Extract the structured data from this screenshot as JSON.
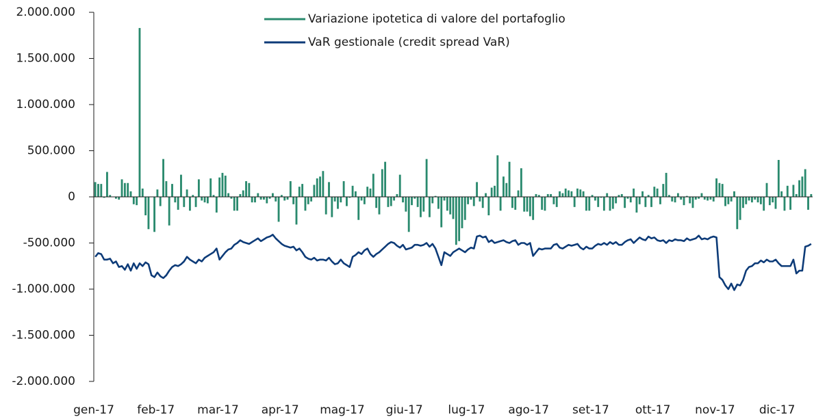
{
  "chart_data": {
    "type": "bar+line",
    "categories": [
      "gen-17",
      null,
      null,
      null,
      null,
      null,
      null,
      null,
      null,
      null,
      null,
      null,
      null,
      null,
      null,
      null,
      null,
      null,
      null,
      null,
      null,
      "feb-17",
      null,
      null,
      null,
      null,
      null,
      null,
      null,
      null,
      null,
      null,
      null,
      null,
      null,
      null,
      null,
      null,
      null,
      null,
      null,
      null,
      "mar-17",
      null,
      null,
      null,
      null,
      null,
      null,
      null,
      null,
      null,
      null,
      null,
      null,
      null,
      null,
      null,
      null,
      null,
      null,
      null,
      null,
      "apr-17",
      null,
      null,
      null,
      null,
      null,
      null,
      null,
      null,
      null,
      null,
      null,
      null,
      null,
      null,
      null,
      null,
      null,
      null,
      null,
      null,
      "mag-17",
      null,
      null,
      null,
      null,
      null,
      null,
      null,
      null,
      null,
      null,
      null,
      null,
      null,
      null,
      null,
      null,
      null,
      null,
      null,
      null,
      "giu-17",
      null,
      null,
      null,
      null,
      null,
      null,
      null,
      null,
      null,
      null,
      null,
      null,
      null,
      null,
      null,
      null,
      null,
      null,
      null,
      null,
      "lug-17",
      null,
      null,
      null,
      null,
      null,
      null,
      null,
      null,
      null,
      null,
      null,
      null,
      null,
      null,
      null,
      null,
      null,
      null,
      null,
      null,
      "ago-17",
      null,
      null,
      null,
      null,
      null,
      null,
      null,
      null,
      null,
      null,
      null,
      null,
      null,
      null,
      null,
      null,
      null,
      null,
      null,
      null,
      "set-17",
      null,
      null,
      null,
      null,
      null,
      null,
      null,
      null,
      null,
      null,
      null,
      null,
      null,
      null,
      null,
      null,
      null,
      null,
      null,
      null,
      "ott-17",
      null,
      null,
      null,
      null,
      null,
      null,
      null,
      null,
      null,
      null,
      null,
      null,
      null,
      null,
      null,
      null,
      null,
      null,
      null,
      null,
      "nov-17",
      null,
      null,
      null,
      null,
      null,
      null,
      null,
      null,
      null,
      null,
      null,
      null,
      null,
      null,
      null,
      null,
      null,
      null,
      null,
      null,
      "dic-17",
      null,
      null,
      null,
      null,
      null,
      null,
      null,
      null,
      null,
      null,
      null
    ],
    "series": [
      {
        "name": "Variazione ipotetica di valore del portafoglio",
        "type": "bar",
        "color": "#2a8a6e",
        "values": [
          160000,
          140000,
          140000,
          -10000,
          270000,
          20000,
          0,
          -20000,
          -30000,
          190000,
          150000,
          150000,
          60000,
          -80000,
          -90000,
          1830000,
          90000,
          -200000,
          -350000,
          0,
          -380000,
          80000,
          -100000,
          410000,
          170000,
          -310000,
          140000,
          -60000,
          -140000,
          240000,
          -110000,
          80000,
          -150000,
          20000,
          -110000,
          190000,
          -40000,
          -60000,
          -70000,
          200000,
          20000,
          -170000,
          210000,
          260000,
          230000,
          40000,
          -20000,
          -150000,
          -150000,
          30000,
          70000,
          170000,
          150000,
          -60000,
          -60000,
          40000,
          -30000,
          -30000,
          -70000,
          -20000,
          40000,
          -50000,
          -270000,
          20000,
          -40000,
          -30000,
          170000,
          -80000,
          -300000,
          110000,
          140000,
          -150000,
          -80000,
          -50000,
          130000,
          200000,
          220000,
          280000,
          -190000,
          160000,
          -220000,
          -50000,
          -130000,
          -60000,
          170000,
          -100000,
          -10000,
          120000,
          60000,
          -250000,
          -40000,
          -80000,
          110000,
          90000,
          250000,
          -120000,
          -190000,
          300000,
          380000,
          -110000,
          -100000,
          -40000,
          30000,
          240000,
          -60000,
          -160000,
          -380000,
          -90000,
          -20000,
          -110000,
          -220000,
          -160000,
          410000,
          -220000,
          -70000,
          10000,
          -130000,
          -330000,
          -40000,
          -150000,
          -190000,
          -240000,
          -520000,
          -480000,
          -340000,
          -250000,
          -80000,
          -30000,
          -100000,
          160000,
          -50000,
          -120000,
          40000,
          -200000,
          100000,
          120000,
          450000,
          -150000,
          220000,
          150000,
          380000,
          -120000,
          -140000,
          70000,
          310000,
          -160000,
          -160000,
          -210000,
          -250000,
          30000,
          20000,
          -140000,
          -150000,
          30000,
          30000,
          -80000,
          -110000,
          60000,
          40000,
          90000,
          70000,
          60000,
          -110000,
          90000,
          80000,
          60000,
          -150000,
          -150000,
          20000,
          -40000,
          -110000,
          -10000,
          -150000,
          40000,
          -150000,
          -130000,
          -70000,
          20000,
          30000,
          -120000,
          -20000,
          -60000,
          90000,
          -170000,
          -80000,
          60000,
          -110000,
          20000,
          -110000,
          110000,
          90000,
          -80000,
          140000,
          260000,
          20000,
          -50000,
          -60000,
          40000,
          -30000,
          -90000,
          10000,
          -70000,
          -120000,
          -30000,
          -20000,
          40000,
          -30000,
          -40000,
          -30000,
          -50000,
          200000,
          150000,
          140000,
          -100000,
          -80000,
          -50000,
          60000,
          -350000,
          -250000,
          -120000,
          -80000,
          -40000,
          -60000,
          -30000,
          -60000,
          -80000,
          -150000,
          150000,
          -90000,
          -60000,
          -130000,
          400000,
          60000,
          -150000,
          120000,
          -140000,
          130000,
          30000,
          180000,
          220000,
          300000,
          -140000,
          30000
        ]
      },
      {
        "name": "VaR gestionale (credit spread VaR)",
        "type": "line",
        "color": "#0d3b78",
        "values": [
          -650000,
          -610000,
          -620000,
          -680000,
          -680000,
          -670000,
          -720000,
          -700000,
          -760000,
          -750000,
          -790000,
          -730000,
          -800000,
          -720000,
          -780000,
          -720000,
          -750000,
          -710000,
          -730000,
          -850000,
          -870000,
          -820000,
          -860000,
          -880000,
          -850000,
          -800000,
          -760000,
          -740000,
          -750000,
          -730000,
          -700000,
          -650000,
          -680000,
          -700000,
          -720000,
          -680000,
          -700000,
          -660000,
          -640000,
          -620000,
          -600000,
          -560000,
          -680000,
          -640000,
          -600000,
          -570000,
          -560000,
          -520000,
          -500000,
          -470000,
          -490000,
          -500000,
          -510000,
          -490000,
          -470000,
          -450000,
          -480000,
          -460000,
          -440000,
          -430000,
          -410000,
          -450000,
          -480000,
          -510000,
          -530000,
          -540000,
          -550000,
          -540000,
          -580000,
          -560000,
          -600000,
          -650000,
          -670000,
          -680000,
          -660000,
          -690000,
          -680000,
          -680000,
          -690000,
          -660000,
          -700000,
          -730000,
          -720000,
          -680000,
          -720000,
          -740000,
          -760000,
          -650000,
          -630000,
          -600000,
          -620000,
          -580000,
          -560000,
          -620000,
          -650000,
          -620000,
          -600000,
          -570000,
          -540000,
          -510000,
          -490000,
          -500000,
          -530000,
          -550000,
          -520000,
          -570000,
          -560000,
          -550000,
          -520000,
          -520000,
          -530000,
          -520000,
          -500000,
          -540000,
          -510000,
          -560000,
          -650000,
          -740000,
          -600000,
          -620000,
          -640000,
          -600000,
          -580000,
          -560000,
          -580000,
          -600000,
          -570000,
          -550000,
          -560000,
          -430000,
          -420000,
          -440000,
          -430000,
          -490000,
          -470000,
          -500000,
          -490000,
          -480000,
          -470000,
          -490000,
          -500000,
          -480000,
          -470000,
          -520000,
          -500000,
          -500000,
          -520000,
          -500000,
          -640000,
          -600000,
          -560000,
          -570000,
          -560000,
          -560000,
          -560000,
          -520000,
          -510000,
          -550000,
          -560000,
          -540000,
          -520000,
          -530000,
          -520000,
          -510000,
          -550000,
          -570000,
          -540000,
          -560000,
          -560000,
          -530000,
          -510000,
          -520000,
          -500000,
          -520000,
          -490000,
          -510000,
          -490000,
          -520000,
          -520000,
          -490000,
          -470000,
          -460000,
          -500000,
          -470000,
          -440000,
          -460000,
          -470000,
          -430000,
          -450000,
          -440000,
          -470000,
          -480000,
          -470000,
          -500000,
          -470000,
          -480000,
          -460000,
          -470000,
          -470000,
          -480000,
          -450000,
          -470000,
          -460000,
          -450000,
          -420000,
          -460000,
          -450000,
          -460000,
          -440000,
          -430000,
          -440000,
          -870000,
          -900000,
          -960000,
          -1000000,
          -940000,
          -1010000,
          -950000,
          -960000,
          -900000,
          -800000,
          -760000,
          -750000,
          -720000,
          -720000,
          -690000,
          -710000,
          -680000,
          -700000,
          -700000,
          -680000,
          -720000,
          -750000,
          -750000,
          -750000,
          -750000,
          -680000,
          -830000,
          -800000,
          -800000,
          -540000,
          -530000,
          -510000
        ]
      }
    ],
    "ylim": [
      -2000000,
      2000000
    ],
    "yticks": [
      {
        "value": -2000000,
        "label": "-2.000.000"
      },
      {
        "value": -1500000,
        "label": "-1.500.000"
      },
      {
        "value": -1000000,
        "label": "-1.000.000"
      },
      {
        "value": -500000,
        "label": "-500.000"
      },
      0,
      {
        "value": 500000,
        "label": "500.000"
      },
      {
        "value": 1000000,
        "label": "1.000.000"
      },
      {
        "value": 1500000,
        "label": "1.500.000"
      },
      {
        "value": 2000000,
        "label": "2.000.000"
      }
    ],
    "grid": false,
    "legend": "top"
  }
}
